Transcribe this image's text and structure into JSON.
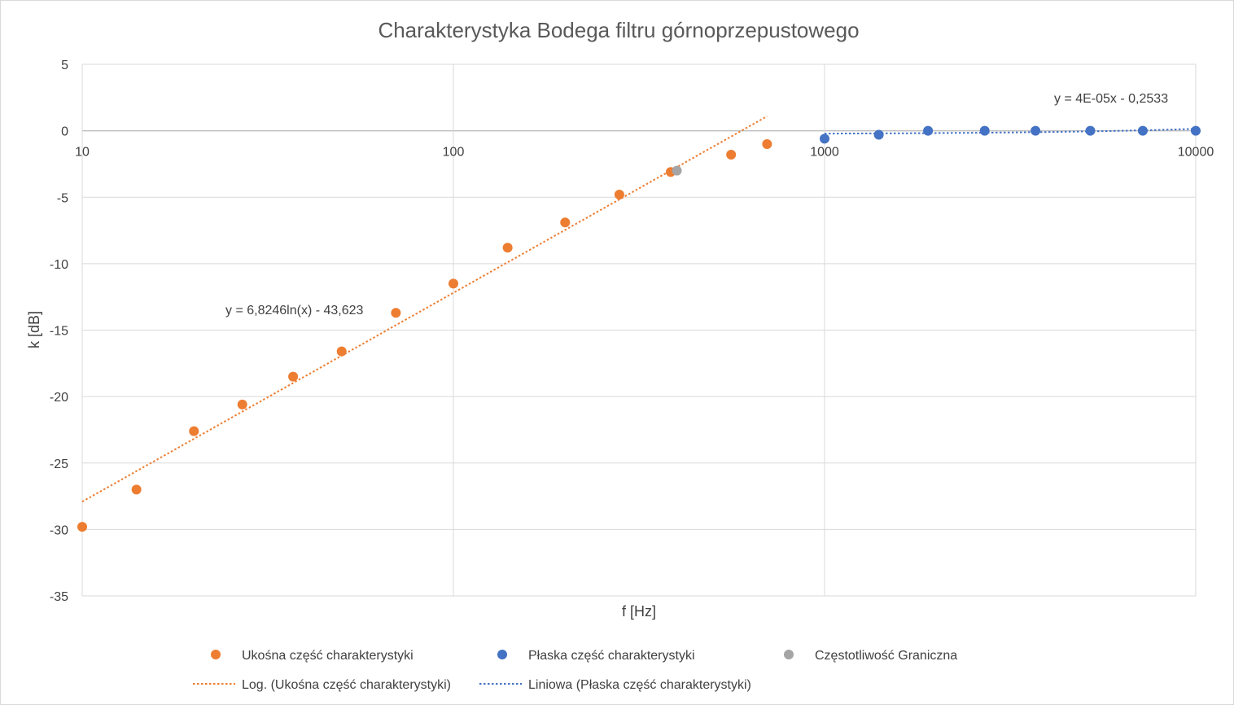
{
  "chart_data": {
    "type": "scatter",
    "title": "Charakterystyka Bodega filtru górnoprzepustowego",
    "xlabel": "f [Hz]",
    "ylabel": "k [dB]",
    "x_scale": "log",
    "xlim": [
      10,
      10000
    ],
    "ylim": [
      -35,
      5
    ],
    "x_ticks": [
      "10",
      "100",
      "1000",
      "10000"
    ],
    "y_ticks": [
      "5",
      "0",
      "-5",
      "-10",
      "-15",
      "-20",
      "-25",
      "-30",
      "-35"
    ],
    "grid": true,
    "legend_position": "bottom",
    "series": [
      {
        "name": "Ukośna część charakterystyki",
        "color": "#ED7D31",
        "marker": "circle",
        "x": [
          10,
          14,
          20,
          27,
          37,
          50,
          70,
          100,
          140,
          200,
          280,
          385,
          560,
          700
        ],
        "y": [
          -29.8,
          -27.0,
          -22.6,
          -20.6,
          -18.5,
          -16.6,
          -13.7,
          -11.5,
          -8.8,
          -6.9,
          -4.8,
          -3.1,
          -1.8,
          -1.0
        ]
      },
      {
        "name": "Płaska część charakterystyki",
        "color": "#4472C4",
        "marker": "circle",
        "x": [
          1000,
          1400,
          1900,
          2700,
          3700,
          5200,
          7200,
          10000
        ],
        "y": [
          -0.6,
          -0.3,
          0.0,
          0.0,
          0.0,
          0.0,
          0.0,
          0.0
        ]
      },
      {
        "name": "Częstotliwość Graniczna",
        "color": "#A5A5A5",
        "marker": "circle",
        "x": [
          400
        ],
        "y": [
          -3.0
        ]
      }
    ],
    "trendlines": [
      {
        "name": "Log. (Ukośna część charakterystyki)",
        "color": "#ED7D31",
        "kind": "log",
        "a": 6.8246,
        "b": -43.623,
        "x_range": [
          10,
          700
        ],
        "equation": "y = 6,8246ln(x) - 43,623"
      },
      {
        "name": "Liniowa (Płaska część charakterystyki)",
        "color": "#4472C4",
        "kind": "linear",
        "a": 4e-05,
        "b": -0.2533,
        "x_range": [
          1000,
          10000
        ],
        "equation": "y = 4E-05x - 0,2533"
      }
    ]
  }
}
